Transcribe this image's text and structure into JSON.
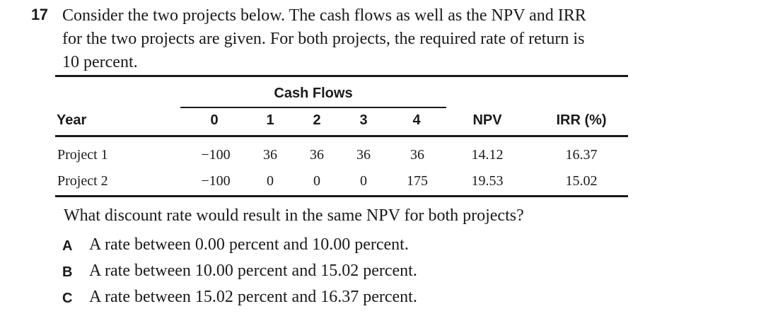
{
  "question_number": "17",
  "stem_lines": [
    "Consider the two projects below. The cash flows as well as the NPV and IRR",
    "for the two projects are given. For both projects, the required rate of return is",
    "10 percent."
  ],
  "table": {
    "group_header": "Cash Flows",
    "headers": {
      "year": "Year",
      "c0": "0",
      "c1": "1",
      "c2": "2",
      "c3": "3",
      "c4": "4",
      "npv": "NPV",
      "irr": "IRR (%)"
    },
    "rows": [
      {
        "label": "Project 1",
        "c0": "−100",
        "c1": "36",
        "c2": "36",
        "c3": "36",
        "c4": "36",
        "npv": "14.12",
        "irr": "16.37"
      },
      {
        "label": "Project 2",
        "c0": "−100",
        "c1": "0",
        "c2": "0",
        "c3": "0",
        "c4": "175",
        "npv": "19.53",
        "irr": "15.02"
      }
    ]
  },
  "question": "What discount rate would result in the same NPV for both projects?",
  "options": [
    {
      "letter": "A",
      "text": "A rate between 0.00 percent and 10.00 percent."
    },
    {
      "letter": "B",
      "text": "A rate between 10.00 percent and 15.02 percent."
    },
    {
      "letter": "C",
      "text": "A rate between 15.02 percent and 16.37 percent."
    }
  ]
}
